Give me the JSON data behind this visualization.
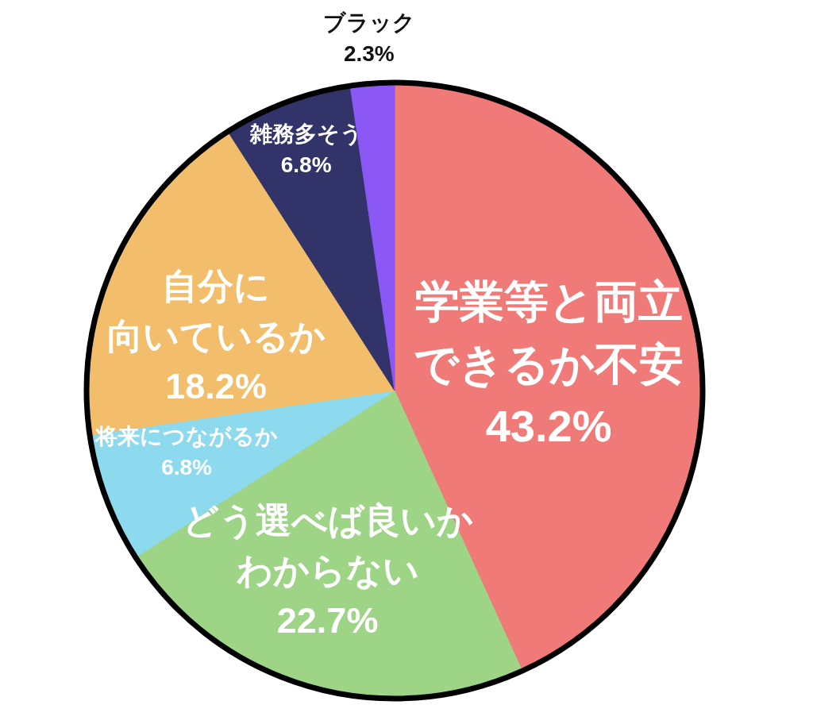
{
  "chart_data": {
    "type": "pie",
    "categories": [
      "学業等と両立できるか不安",
      "どう選べば良いかわからない",
      "将来につながるか",
      "自分に向いているか",
      "雑務多そう",
      "ブラック"
    ],
    "values": [
      43.2,
      22.7,
      6.8,
      18.2,
      6.8,
      2.3
    ],
    "value_labels": [
      "43.2%",
      "22.7%",
      "6.8%",
      "18.2%",
      "6.8%",
      "2.3%"
    ],
    "colors": [
      "#ef7a77",
      "#9dd486",
      "#8dd9ee",
      "#f3be6b",
      "#323469",
      "#8b57f5"
    ]
  }
}
